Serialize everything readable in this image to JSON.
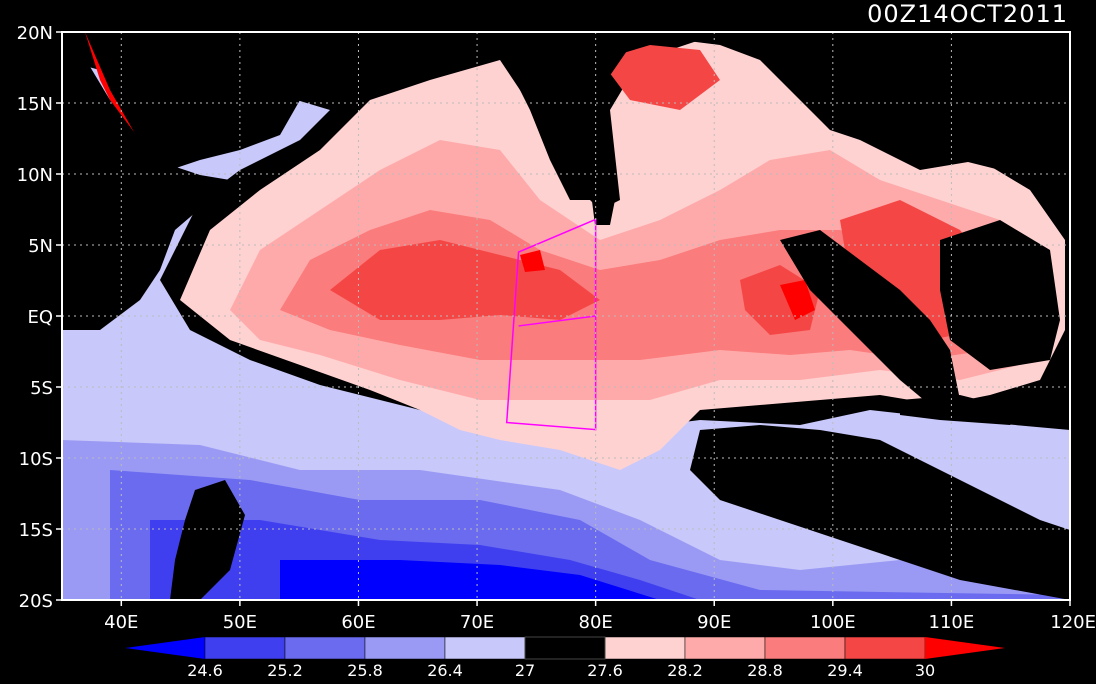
{
  "time_label": "00Z14OCT2011",
  "lat_ticks": [
    {
      "value": 20,
      "label": "20N"
    },
    {
      "value": 15,
      "label": "15N"
    },
    {
      "value": 10,
      "label": "10N"
    },
    {
      "value": 5,
      "label": "5N"
    },
    {
      "value": 0,
      "label": "EQ"
    },
    {
      "value": -5,
      "label": "5S"
    },
    {
      "value": -10,
      "label": "10S"
    },
    {
      "value": -15,
      "label": "15S"
    },
    {
      "value": -20,
      "label": "20S"
    }
  ],
  "lon_ticks": [
    {
      "value": 40,
      "label": "40E"
    },
    {
      "value": 50,
      "label": "50E"
    },
    {
      "value": 60,
      "label": "60E"
    },
    {
      "value": 70,
      "label": "70E"
    },
    {
      "value": 80,
      "label": "80E"
    },
    {
      "value": 90,
      "label": "90E"
    },
    {
      "value": 100,
      "label": "100E"
    },
    {
      "value": 110,
      "label": "110E"
    },
    {
      "value": 120,
      "label": "120E"
    }
  ],
  "map_extent": {
    "lon_min": 35,
    "lon_max": 120,
    "lat_min": -20,
    "lat_max": 20
  },
  "colorbar": {
    "colors": [
      "#0000ff",
      "#3f3ff0",
      "#6b6bf0",
      "#9a9af5",
      "#c8c8fa",
      "#000000",
      "#ffd2d2",
      "#ffaaaa",
      "#fa7c7c",
      "#f54646",
      "#ff0000"
    ],
    "labels": [
      "24.6",
      "25.2",
      "25.8",
      "26.4",
      "27",
      "27.6",
      "28.2",
      "28.8",
      "29.4",
      "30"
    ]
  },
  "overlay_color": "#ff00ff",
  "overlay_box": [
    [
      73.5,
      4.5
    ],
    [
      80,
      6.8
    ],
    [
      80,
      -8
    ],
    [
      72.5,
      -7.5
    ]
  ],
  "overlay_line": [
    [
      73.5,
      -0.7
    ],
    [
      80,
      0
    ]
  ]
}
